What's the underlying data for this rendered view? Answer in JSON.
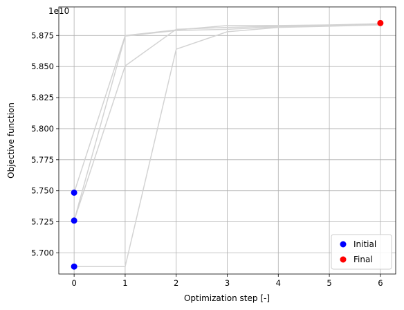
{
  "chart_data": {
    "type": "line",
    "title": "",
    "xlabel": "Optimization step [-]",
    "ylabel": "Objective function",
    "y_offset_label": "1e10",
    "xlim": [
      -0.3,
      6.3
    ],
    "ylim": [
      5.683,
      5.898
    ],
    "xticks": [
      0,
      1,
      2,
      3,
      4,
      5,
      6
    ],
    "yticks": [
      5.7,
      5.725,
      5.75,
      5.775,
      5.8,
      5.825,
      5.85,
      5.875
    ],
    "ytick_labels": [
      "5.700",
      "5.725",
      "5.750",
      "5.775",
      "5.800",
      "5.825",
      "5.850",
      "5.875"
    ],
    "grid": true,
    "legend_position": "lower-right",
    "line_color": "#d3d3d3",
    "series": [
      {
        "x": [
          0,
          1,
          2,
          3,
          4,
          5,
          6
        ],
        "y": [
          5.7485,
          5.875,
          5.8795,
          5.883,
          5.883,
          5.8835,
          5.8845
        ]
      },
      {
        "x": [
          0,
          1,
          2,
          3,
          4,
          5,
          6
        ],
        "y": [
          5.726,
          5.8745,
          5.879,
          5.88,
          5.882,
          5.883,
          5.884
        ]
      },
      {
        "x": [
          0,
          1,
          2,
          3,
          4,
          5,
          6
        ],
        "y": [
          5.726,
          5.8505,
          5.88,
          5.8815,
          5.8825,
          5.883,
          5.8835
        ]
      },
      {
        "x": [
          0,
          1,
          2,
          3,
          4,
          5,
          6
        ],
        "y": [
          5.689,
          5.689,
          5.864,
          5.878,
          5.8815,
          5.8825,
          5.8835
        ]
      }
    ],
    "scatter": [
      {
        "name": "Initial",
        "color": "#0000ff",
        "points": [
          [
            0,
            5.7485
          ],
          [
            0,
            5.726
          ],
          [
            0,
            5.689
          ]
        ]
      },
      {
        "name": "Final",
        "color": "#ff0000",
        "points": [
          [
            6,
            5.885
          ]
        ]
      }
    ]
  }
}
